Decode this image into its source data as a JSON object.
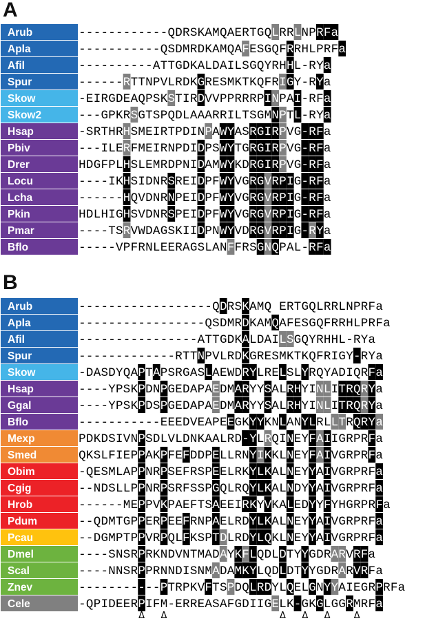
{
  "colors": {
    "deuterostome_ambulacraria": "#2369b4",
    "hemichordata": "#45b5e8",
    "chordata": "#6a3a96",
    "lophotrochozoa_flatworms": "#f08a34",
    "lophotrochozoa": "#ec2227",
    "rotifer": "#ffc20e",
    "arthropoda": "#6db33f",
    "nematoda": "#808080",
    "conserved_black": "#000000",
    "similar_gray": "#808080",
    "weak_gray": "#a9a9a9"
  },
  "panels": [
    {
      "label": "A",
      "rows": [
        {
          "species": "Arub",
          "color": "#2369b4",
          "seq": "------------QDRSKAMQAERTGQLRRLNPRFa",
          "shade": "..........................g..g..KKKK"
        },
        {
          "species": "Apla",
          "color": "#2369b4",
          "seq": "-----------QSDMRDKAMQAFESGQFRRHLPRFa",
          "shade": "......................g.....K......KKK"
        },
        {
          "species": "Afil",
          "color": "#2369b4",
          "seq": "----------ATTGDKALDAILSGQYRHHL-RYa",
          "shade": "............................K....KgK"
        },
        {
          "species": "Spur",
          "color": "#2369b4",
          "seq": "------RTTNPVLRDKGRESMKTKQFRIGY-RYa",
          "shade": "......g.........K..........gK...K..KgK"
        },
        {
          "species": "Skow",
          "color": "#45b5e8",
          "seq": "-EIRGDEAQPSKSTIRDVVPPRRRPINPAI-RFa",
          "shade": "............g...K........Kg..K...KKK"
        },
        {
          "species": "Skow2",
          "color": "#45b5e8",
          "seq": "---GPKRSGTSPQDLAAARRILTSGMNPTL-RYa",
          "shade": ".......g..................Kg.K...KKK"
        },
        {
          "species": "Hsap",
          "color": "#6a3a96",
          "seq": "-SRTHRHSMEIRTPDINPAWYASRGIRPVG-RFa",
          "shade": "......g..........g.KK..KKKKg..KKK"
        },
        {
          "species": "Pbiv",
          "color": "#6a3a96",
          "seq": "---ILERFMEIRNPDIDPSWYTGRGIRPVG-RFa",
          "shade": "......g.........K..KK..KKKKg..KKK"
        },
        {
          "species": "Drer",
          "color": "#6a3a96",
          "seq": "HDGFPLHSLEMRDPNIDAMWYKDRGIRPVG-RFa",
          "shade": "......K.........K..KK..KKKKg..KKK"
        },
        {
          "species": "Locu",
          "color": "#6a3a96",
          "seq": "----IKHSIDNRSREIDPFWYVGRGVRPIG-RFa",
          "shade": "......K.....K...K..KK..KKgKKK.KKK"
        },
        {
          "species": "Lcha",
          "color": "#6a3a96",
          "seq": "------HQVDNRNPEIDPFWYVGRGVRPIG-RFa",
          "shade": "......K.....K...K..KK..KKgKKK.KKK"
        },
        {
          "species": "Pkin",
          "color": "#6a3a96",
          "seq": "HDLHIGHSVDNRSPEIDPFWYVGRGVRPIG-RFa",
          "shade": "......K.....K...K..KK..KKgKKK.KKK"
        },
        {
          "species": "Pmar",
          "color": "#6a3a96",
          "seq": "----TSRVWDAGSKIIDPNWYVDRGVRPIG-RYa",
          "shade": "......g.........K..KK..KKgKKK.KgK"
        },
        {
          "species": "Bflo",
          "color": "#6a3a96",
          "seq": "-----VPFRNLEERAGSLANFFRSGNQPAL-RFa",
          "shade": "....................g...KgK....KKK"
        }
      ]
    },
    {
      "label": "B",
      "rows": [
        {
          "species": "Arub",
          "color": "#2369b4",
          "seq": "------------------QDRSKAMQ ERTGQLRRLNPRFa",
          "shade": "...................K..K.........................KKKKK"
        },
        {
          "species": "Apla",
          "color": "#2369b4",
          "seq": "-----------------QSDMRDKAMQAFESGQFRRHLPRFa",
          "shade": "......................K...K...................KKKK"
        },
        {
          "species": "Afil",
          "color": "#2369b4",
          "seq": "----------------ATTGDKALDAILSGQYRHHL-RYa",
          "shade": "......................K....gg.............KgK"
        },
        {
          "species": "Spur",
          "color": "#2369b4",
          "seq": "-------------RTTNPVLRDKGRESMKTKQFRIGY-RYa",
          "shade": "................K.....K..............K...KgK"
        },
        {
          "species": "Skow",
          "color": "#45b5e8",
          "seq": "-DASDYQAPTAPSRGASLAEWDRYLRELSLYRQYADIQRFa",
          "shade": "........K.K......K....KK...K..K........KKK"
        },
        {
          "species": "Hsap",
          "color": "#6a3a96",
          "seq": "----YPSKPDNPGEDAPAEDMARYYSALRHYINLITRQRYa",
          "shade": "........K..K......g..KK..K..KK..gg.KKKgK"
        },
        {
          "species": "Ggal",
          "color": "#6a3a96",
          "seq": "----YPSKPDSPGEDAPAEDMARYYSALRHYINLITRQRYa",
          "shade": "........K..K......g..KK..K..KK..gg.KKKgK"
        },
        {
          "species": "Bflo",
          "color": "#6a3a96",
          "seq": "-----------EEEDVEAPEEGKYYKNLANYLRLLTRQRYa",
          "shade": "....................K..KK..K..KK..gg.KKKgK"
        },
        {
          "species": "Mexp",
          "color": "#f08a34",
          "seq": "PDKDSIVNPSDLVLDNKAALRD-YLRQINEYFAIIGRPRFa",
          "shade": "........K.............KK.g..K..KgK.....K"
        },
        {
          "species": "Smed",
          "color": "#f08a34",
          "seq": "QKSLFIEPPAKPFEFDDPELLRNYIKKLNEYFAIVGRPRFa",
          "shade": "........K..K..K...K....KgK..K..KgK.....K"
        },
        {
          "species": "Obim",
          "color": "#ec2227",
          "seq": "-QESMLAPPNRPSEFRSPEELRKYLKALNEYYAIVGRPRFa",
          "shade": "........K..K......K....KKK..K..K.K......K"
        },
        {
          "species": "Cgig",
          "color": "#ec2227",
          "seq": "--NDSLLPPNRPSRFSSPGQLRQYLKALNDYYAIVGRPRFa",
          "shade": "........K..K......K....KKK..K..K.K......K"
        },
        {
          "species": "Hrob",
          "color": "#ec2227",
          "seq": "------MEPPVKPAEFTSAEEIRKYVKALEDYYFYHGRPRFa",
          "shade": "........K..K......K...KK.K..K..K.K......K"
        },
        {
          "species": "Pdum",
          "color": "#ec2227",
          "seq": "--QDMTGPPERPEEFRNPAELRDYLKALNEYYAIVGRPRFa",
          "shade": "........K..K..K...K....KKK..K..K.K......K"
        },
        {
          "species": "Pcau",
          "color": "#ffc20e",
          "seq": "--DGMPTPPVRPQLFKSPTDLRDYLQKLNEYYAIVGRPRFa",
          "shade": "........K..K..K...Kg...KKK..K..K.K......K"
        },
        {
          "species": "Dmel",
          "color": "#6db33f",
          "seq": "----SNSRPRKNDVNTMADAYKFLQDLDTYYGDRARVRFa",
          "shade": "........K..........g.KgK...K..K...gg.KK"
        },
        {
          "species": "Scal",
          "color": "#6db33f",
          "seq": "----NNSRPPRNNDISNMADAMKYLQDLDTYYGDRARVRFa",
          "shade": "........K.........g..KKK...K..K....g.KK"
        },
        {
          "species": "Znev",
          "color": "#6db33f",
          "seq": "-----------PTRPKVFTSPDQLRDYLQELGNYYAIEGRPRFa",
          "shade": "........K..K.....K..g..KKK..K..K.Kg.....K"
        },
        {
          "species": "Cele",
          "color": "#808080",
          "seq": "-QPIDEERPIFM-ERREASAFGDIIGELK-GKGLGGRMRFa",
          "shade": "........K.................g..K..K...K...KK"
        }
      ],
      "markers": [
        "Δ",
        "Δ",
        "Δ",
        "Δ",
        "Δ",
        "Δ"
      ]
    }
  ]
}
